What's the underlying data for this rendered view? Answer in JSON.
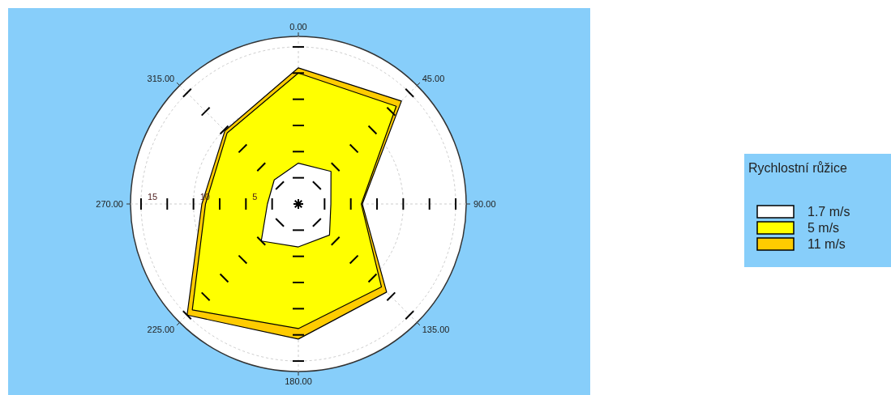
{
  "chart_data": {
    "type": "radar",
    "legend_title": "Rychlostní růžice",
    "categories": [
      "0.00",
      "45.00",
      "90.00",
      "135.00",
      "180.00",
      "225.00",
      "270.00",
      "315.00"
    ],
    "series": [
      {
        "name": "11 m/s",
        "color": "#ffcc00",
        "values": [
          13.0,
          13.9,
          6.1,
          11.9,
          12.9,
          15.0,
          9.2,
          9.9
        ]
      },
      {
        "name": "5 m/s",
        "color": "#ffff00",
        "values": [
          12.5,
          13.2,
          6.0,
          11.2,
          11.9,
          14.3,
          8.85,
          9.6
        ]
      },
      {
        "name": "1.7 m/s",
        "color": "#ffffff",
        "values": [
          3.9,
          4.4,
          3.1,
          4.2,
          4.1,
          5.0,
          2.95,
          3.25
        ]
      }
    ],
    "ylim": [
      0,
      16
    ],
    "yticks": [
      5,
      10,
      15
    ],
    "grid": true,
    "legend": "right"
  }
}
